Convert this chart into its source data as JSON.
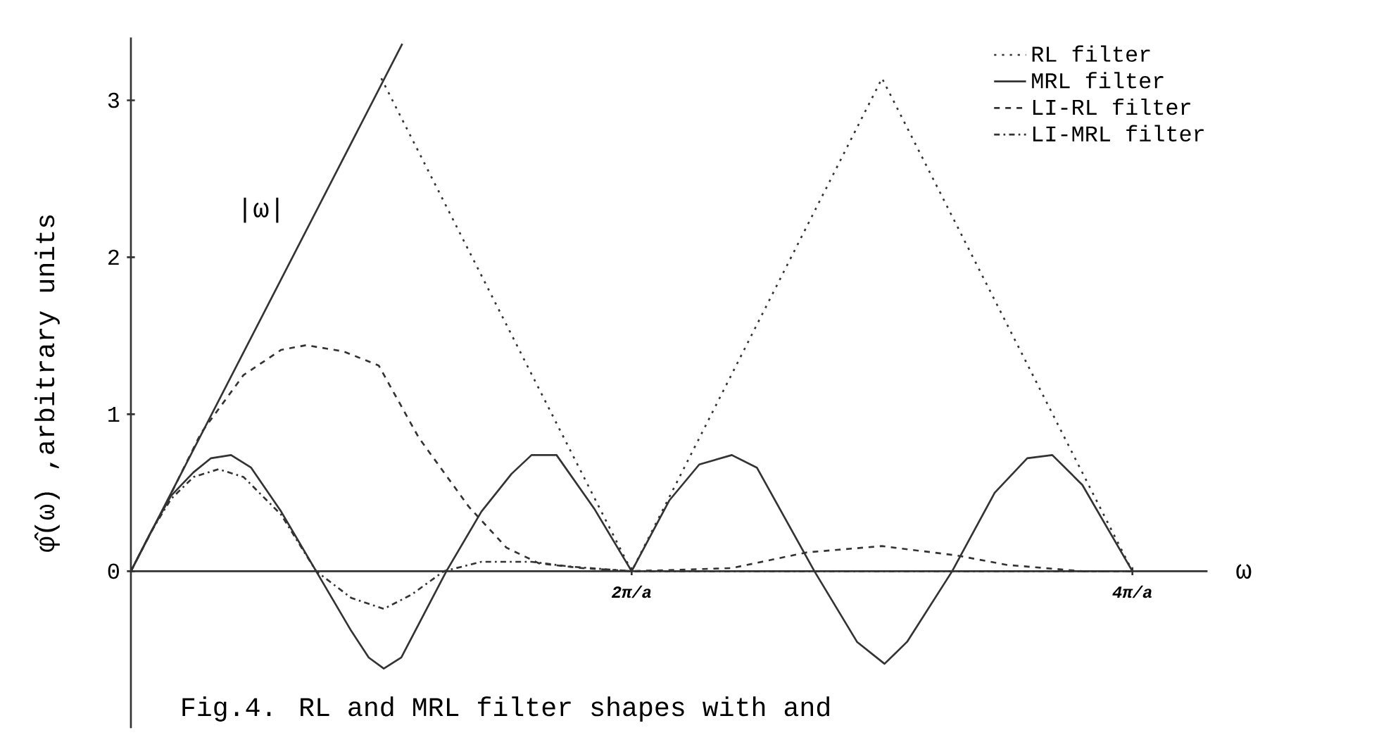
{
  "chart_data": {
    "type": "line",
    "xlabel": "ω",
    "ylabel": "φ̂(ω) ,arbitrary units",
    "xlim": [
      0,
      4.3
    ],
    "ylim": [
      -1.0,
      3.4
    ],
    "xticks": [
      {
        "value": 2,
        "label": "2π/a"
      },
      {
        "value": 4,
        "label": "4π/a"
      }
    ],
    "yticks": [
      0,
      1,
      2,
      3
    ],
    "grid": false,
    "legend": "top right",
    "annotations": [
      "|ω|",
      "Fig.4. RL and MRL filter shapes with and"
    ],
    "series": [
      {
        "color": "#333333",
        "line_style": "solid",
        "x": [
          0,
          1.084
        ],
        "values": [
          0,
          3.36
        ]
      },
      {
        "name": "RL filter",
        "color": "#333333",
        "line_style": "dotted",
        "x": [
          1.0,
          2.0,
          3.0,
          4.0
        ],
        "values": [
          3.14,
          0,
          3.14,
          0
        ]
      },
      {
        "name": "MRL filter",
        "color": "#333333",
        "line_style": "solid",
        "x": [
          0,
          0.08,
          0.16,
          0.25,
          0.32,
          0.4,
          0.48,
          0.6,
          0.74,
          0.88,
          0.95,
          1.01,
          1.08,
          1.26,
          1.4,
          1.52,
          1.6,
          1.7,
          1.85,
          2.0,
          2.15,
          2.27,
          2.4,
          2.5,
          2.73,
          2.9,
          3.01,
          3.1,
          3.28,
          3.45,
          3.58,
          3.68,
          3.8,
          4.0
        ],
        "values": [
          0,
          0.25,
          0.48,
          0.63,
          0.72,
          0.74,
          0.66,
          0.38,
          0,
          -0.38,
          -0.55,
          -0.62,
          -0.55,
          0,
          0.38,
          0.62,
          0.74,
          0.74,
          0.4,
          0,
          0.45,
          0.68,
          0.74,
          0.66,
          0,
          -0.45,
          -0.59,
          -0.45,
          0,
          0.5,
          0.72,
          0.74,
          0.55,
          0
        ]
      },
      {
        "name": "LI-RL filter",
        "color": "#333333",
        "line_style": "dashed",
        "x": [
          0,
          0.15,
          0.28,
          0.45,
          0.6,
          0.7,
          0.85,
          0.99,
          1.15,
          1.35,
          1.5,
          1.63,
          1.8,
          2.0,
          2.4,
          2.7,
          3.0,
          3.3,
          3.5,
          3.8,
          4.0
        ],
        "values": [
          0,
          0.46,
          0.88,
          1.25,
          1.41,
          1.44,
          1.4,
          1.31,
          0.85,
          0.41,
          0.15,
          0.05,
          0.02,
          0,
          0.02,
          0.12,
          0.16,
          0.1,
          0.04,
          0,
          0
        ]
      },
      {
        "name": "LI-MRL filter",
        "color": "#333333",
        "line_style": "dashdot",
        "x": [
          0,
          0.08,
          0.16,
          0.25,
          0.35,
          0.45,
          0.6,
          0.74,
          0.88,
          1.01,
          1.12,
          1.25,
          1.4,
          1.6,
          1.75,
          2.0,
          3.0,
          4.0
        ],
        "values": [
          0,
          0.25,
          0.46,
          0.6,
          0.65,
          0.6,
          0.36,
          0,
          -0.17,
          -0.24,
          -0.15,
          0,
          0.06,
          0.06,
          0.03,
          0,
          0,
          0
        ]
      }
    ]
  }
}
